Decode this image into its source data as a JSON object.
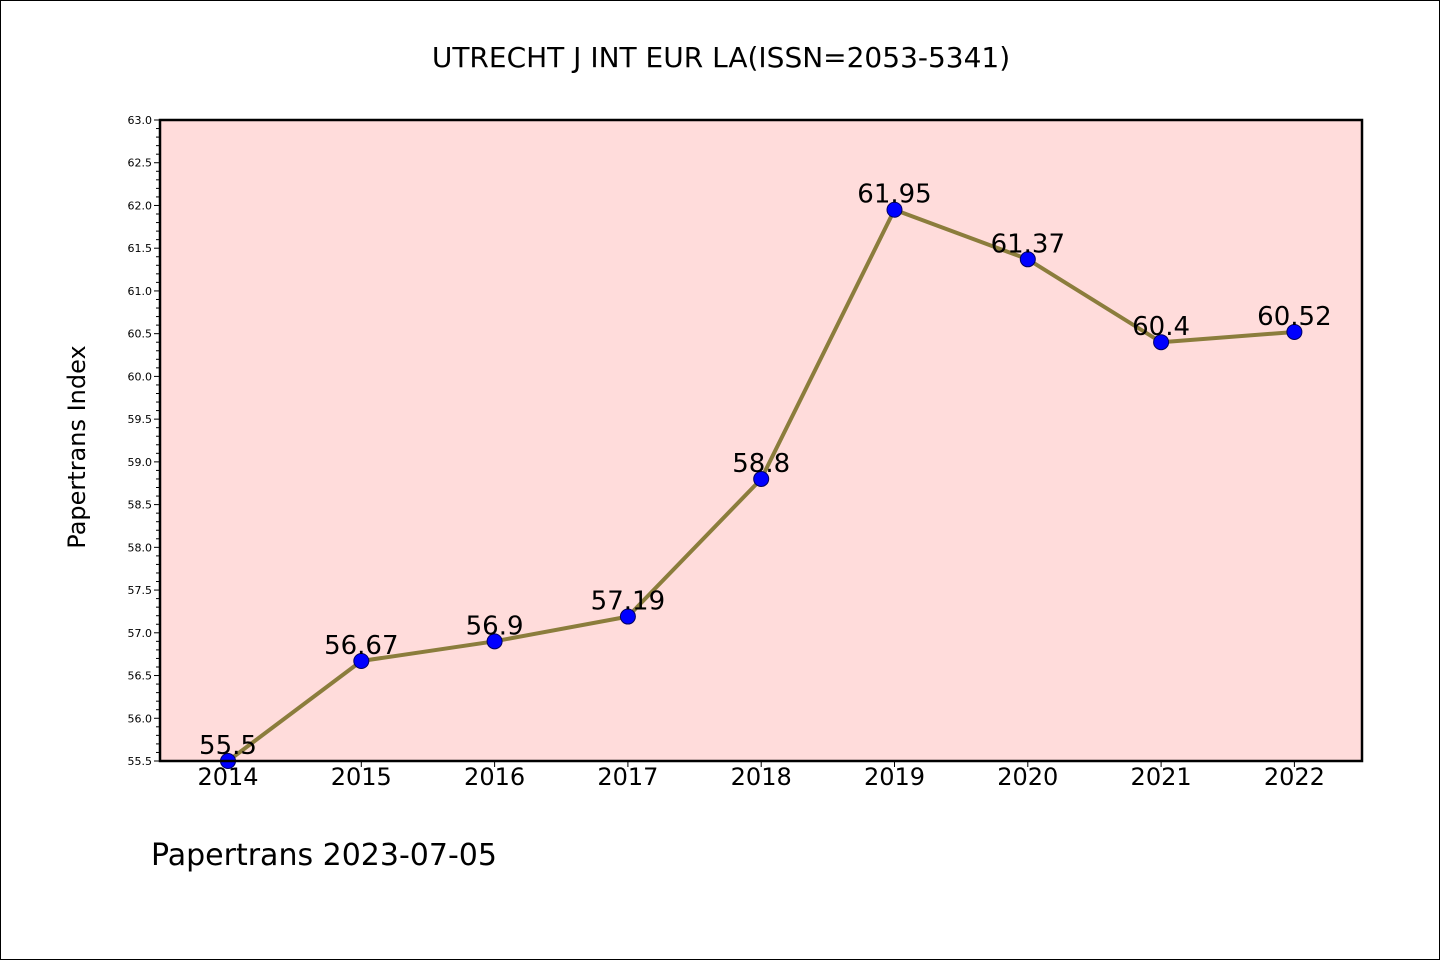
{
  "chart_data": {
    "type": "line",
    "title": "UTRECHT J INT EUR LA(ISSN=2053-5341)",
    "xlabel": "",
    "ylabel": "Papertrans Index",
    "x": [
      "2014",
      "2015",
      "2016",
      "2017",
      "2018",
      "2019",
      "2020",
      "2021",
      "2022"
    ],
    "values": [
      55.5,
      56.67,
      56.9,
      57.19,
      58.8,
      61.95,
      61.37,
      60.4,
      60.52
    ],
    "data_labels": [
      "55.5",
      "56.67",
      "56.9",
      "57.19",
      "58.8",
      "61.95",
      "61.37",
      "60.4",
      "60.52"
    ],
    "ylim": [
      55.5,
      63.0
    ],
    "yticks": [
      "55.5",
      "56.0",
      "56.5",
      "57.0",
      "57.5",
      "58.0",
      "58.5",
      "59.0",
      "59.5",
      "60.0",
      "60.5",
      "61.0",
      "61.5",
      "62.0",
      "62.5",
      "63.0"
    ],
    "grid": false,
    "legend": "none",
    "colors": {
      "plot_background": "#ffdcdb",
      "line": "#8b7d3c",
      "marker": "#0000ff",
      "axes": "#000000"
    }
  },
  "footer": {
    "text": "Papertrans 2023-07-05"
  }
}
